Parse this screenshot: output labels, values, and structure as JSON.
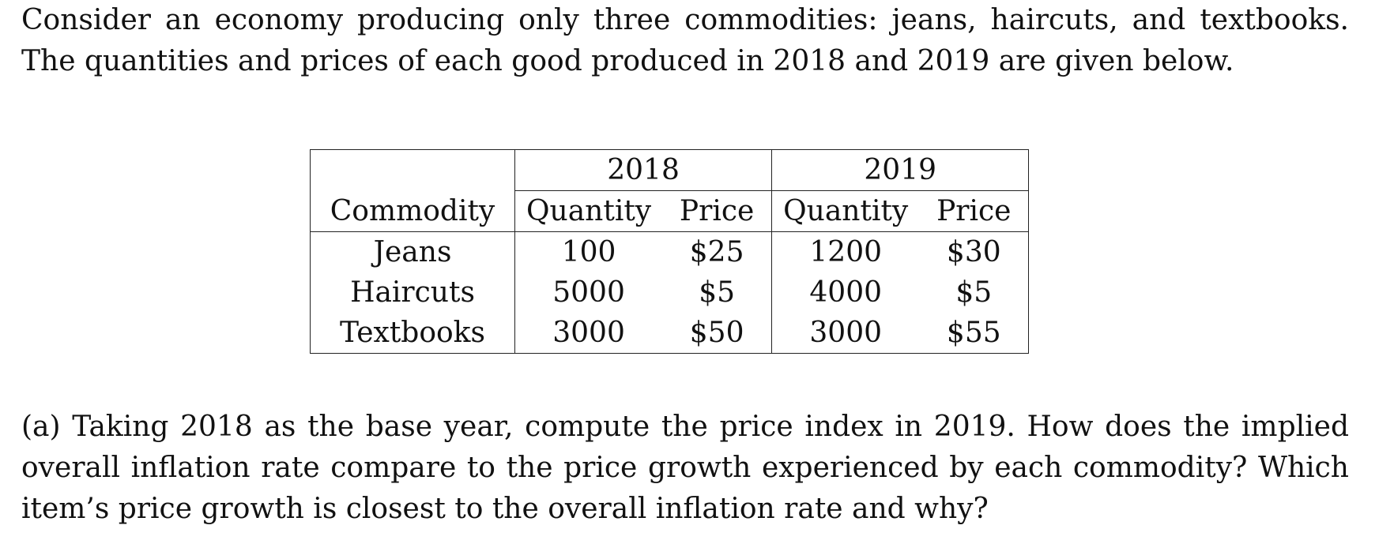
{
  "intro": {
    "text": "Consider an economy producing only three commodities: jeans, haircuts, and textbooks. The quantities and prices of each good produced in 2018 and 2019 are given below."
  },
  "table": {
    "years": [
      "2018",
      "2019"
    ],
    "header": {
      "commodity": "Commodity",
      "quantity": "Quantity",
      "price": "Price"
    },
    "rows": [
      {
        "commodity": "Jeans",
        "q2018": "100",
        "p2018": "$25",
        "q2019": "1200",
        "p2019": "$30"
      },
      {
        "commodity": "Haircuts",
        "q2018": "5000",
        "p2018": "$5",
        "q2019": "4000",
        "p2019": "$5"
      },
      {
        "commodity": "Textbooks",
        "q2018": "3000",
        "p2018": "$50",
        "q2019": "3000",
        "p2019": "$55"
      }
    ]
  },
  "question": {
    "text": "(a) Taking 2018 as the base year, compute the price index in 2019. How does the implied overall inflation rate compare to the price growth experienced by each commodity? Which item’s price growth is closest to the overall inflation rate and why?"
  }
}
